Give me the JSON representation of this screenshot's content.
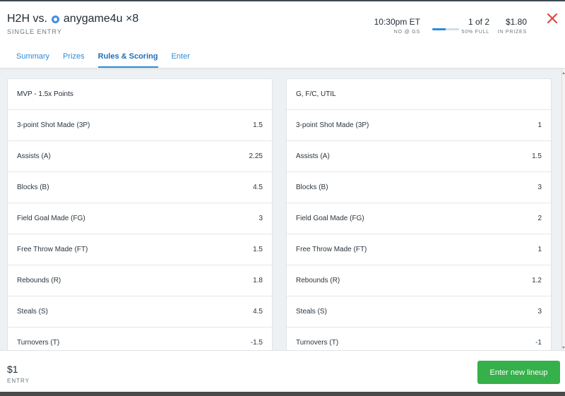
{
  "header": {
    "title_prefix": "H2H vs.",
    "opponent": "anygame4u ×8",
    "subtitle": "SINGLE ENTRY",
    "time": {
      "value": "10:30pm ET",
      "label": "NO @ GS"
    },
    "entries": {
      "value": "1 of 2",
      "label": "50% FULL",
      "fill_percent": 50
    },
    "prizes": {
      "value": "$1.80",
      "label": "IN PRIZES"
    },
    "close_icon": "close-icon",
    "accent_color": "#2e8bd8",
    "close_color": "#e0403a"
  },
  "tabs": [
    {
      "label": "Summary",
      "active": false
    },
    {
      "label": "Prizes",
      "active": false
    },
    {
      "label": "Rules & Scoring",
      "active": true
    },
    {
      "label": "Enter",
      "active": false
    }
  ],
  "scoring": {
    "left": {
      "title": "MVP - 1.5x Points",
      "rows": [
        {
          "label": "3-point Shot Made (3P)",
          "value": "1.5"
        },
        {
          "label": "Assists (A)",
          "value": "2.25"
        },
        {
          "label": "Blocks (B)",
          "value": "4.5"
        },
        {
          "label": "Field Goal Made (FG)",
          "value": "3"
        },
        {
          "label": "Free Throw Made (FT)",
          "value": "1.5"
        },
        {
          "label": "Rebounds (R)",
          "value": "1.8"
        },
        {
          "label": "Steals (S)",
          "value": "4.5"
        },
        {
          "label": "Turnovers (T)",
          "value": "-1.5"
        }
      ]
    },
    "right": {
      "title": "G, F/C, UTIL",
      "rows": [
        {
          "label": "3-point Shot Made (3P)",
          "value": "1"
        },
        {
          "label": "Assists (A)",
          "value": "1.5"
        },
        {
          "label": "Blocks (B)",
          "value": "3"
        },
        {
          "label": "Field Goal Made (FG)",
          "value": "2"
        },
        {
          "label": "Free Throw Made (FT)",
          "value": "1"
        },
        {
          "label": "Rebounds (R)",
          "value": "1.2"
        },
        {
          "label": "Steals (S)",
          "value": "3"
        },
        {
          "label": "Turnovers (T)",
          "value": "-1"
        }
      ]
    }
  },
  "footer": {
    "entry_fee": "$1",
    "entry_label": "ENTRY",
    "button_label": "Enter new lineup",
    "button_color": "#36b04a"
  }
}
